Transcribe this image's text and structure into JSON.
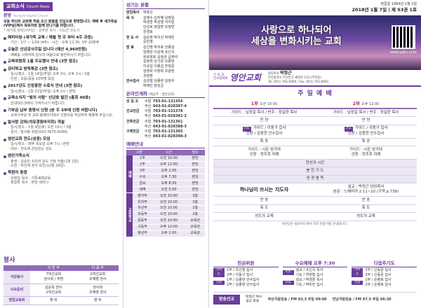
{
  "left": {
    "header": {
      "title": "교회소식",
      "subtitle": "Church News"
    },
    "welcome": {
      "label": "환영",
      "english": "Young-An Baptist Church",
      "text": "오늘 주님의 교회에 처음 오신 분들을 진심으로 환영합니다. 예배 후 새가족실(VIP실)에서 목회자와 함께 만나기를 바랍니다.",
      "note": "* 새가족 담당(VIP실) : 김주연 목사 · 이도연 전도사"
    },
    "news": [
      {
        "title": "해피타임 (새가족 교육 / 매월 첫 주 부터 4주 과정)",
        "lines": [
          "· 기간 : 1/7 ~ 1/28 (4주)  · 시간 : 오후 12:30, 3부 20분후"
        ]
      },
      {
        "title": "오늘은 신년감사주일 입니다 (예산 4,960만원)",
        "lines": [
          "· 예배를 시작하며 감사의 마음으로 봉헌하시기 바랍니다."
        ]
      },
      {
        "title": "교육위원회 1월 주요행사 안내 (3면 참조)",
        "lines": []
      },
      {
        "title": "큐티학교 방학특강 (3면 참조)",
        "lines": [
          "· 일시/장소 : 1월 14일(주일) 오후 3시, 오후 2시 / 3층",
          "· 인원 : 초등/중등 10여명 모집"
        ]
      },
      {
        "title": "2017년도 신앙훈련 수료식 안내 (3면 참조)",
        "lines": [
          "· 일시/장소 : 1월 21일(주일) 오후 2시 / 본당"
        ]
      },
      {
        "title": "교육소식지 \"빛의 사람\" 신년호 발간 (총회 40호)",
        "lines": [
          "· 안내데스크에서 가져가시기 바랍니다."
        ]
      },
      {
        "title": "기부금 납부 증명서 신청 (본 주 3부에 신청 바랍니다)",
        "lines": [
          "· 교회사무실 및 교회 홈페이지에서 신청서를 작성하여 제출해 주십시오."
        ]
      },
      {
        "title": "발사랑 강좌(치유경험바자회) 개설",
        "lines": [
          "· 일시/장소 : 1월 9일(화) 오전 10시 / 3층",
          "· 문의 : 발사랑 회장(010-3975-9289)"
        ]
      },
      {
        "title": "영안교회 전도(성경) 모임",
        "lines": [
          "· 일시/장소 : 매주 목요일 오후 7시 / 본당",
          "· 대상 : 전도에 관심있는 성도"
        ]
      },
      {
        "title": "영안가족소식",
        "lines": [
          "· 출생 : 김승민·조은비 성도 가정 아들(1월 2일)",
          "· 소천 : 박선애 권사 모친(12월 29일)"
        ]
      },
      {
        "title": "죽현자 동정",
        "lines": [
          "· 남정일 목사 : 가족세례교육",
          "· 정일환 목사 : 본당 세미나"
        ]
      }
    ],
    "service": {
      "title": "봉사",
      "columns": [
        "이 번 주",
        "다 음 주"
      ],
      "rows": [
        {
          "label": "식당봉사",
          "this": [
            "7여선교회",
            "권사회 / 주방"
          ],
          "next": [
            "2여선교회",
            "조혜영 권사"
          ]
        },
        {
          "label": "수요준비",
          "this": [
            "김순옥 권사",
            "2여선교회"
          ],
          "next": [
            "권사회",
            "조혜영 권사"
          ]
        },
        {
          "label": "영업교육회",
          "this": [
            "영 락"
          ],
          "next": [
            "영 락"
          ]
        }
      ]
    }
  },
  "middle": {
    "staff_title": "섬기는 분들",
    "staff": [
      {
        "role": "담임목사",
        "names": [
          "박정근"
        ]
      },
      {
        "role": "목 사",
        "names": [
          "김재수 김지혜 남정일",
          "박경훈 박성열 서지원",
          "안성호 정일환 조정연",
          "한경호"
        ]
      },
      {
        "role": "전 도 사",
        "names": [
          "김순영 박이선 박재진",
          "윤민영"
        ]
      },
      {
        "role": "장 로",
        "names": [
          "김건영 박석호 안종성",
          "양영관 이성재 조인국",
          "원로장로 김정균 김재석",
          "김정현 남기원 오종현",
          "이규섭 이종섭 전정문",
          "김창희 이창희 조광현",
          "조장환"
        ]
      },
      {
        "role": "안수집사",
        "names": [
          "김성렬 김종현 김정우",
          "박재진 정성균"
        ]
      }
    ],
    "accounts_title": "온라인계좌",
    "accounts_note": "(예금주 : 영안교회)",
    "accounts": [
      {
        "label": "성 일 조",
        "rows": [
          [
            "수협",
            "703-01-131354"
          ],
          [
            "부산",
            "043-01-028387-4"
          ]
        ]
      },
      {
        "label": "선교헌금",
        "rows": [
          [
            "수협",
            "703-01-131378"
          ],
          [
            "부산",
            "043-01-028381-2"
          ]
        ]
      },
      {
        "label": "건축헌금",
        "rows": [
          [
            "수협",
            "703-01-131361"
          ],
          [
            "부산",
            "043-01-028388-3"
          ]
        ]
      },
      {
        "label": "구제헌금",
        "rows": [
          [
            "수협",
            "703-01-131365"
          ],
          [
            "부산",
            "043-01-028390-3"
          ]
        ]
      }
    ],
    "schedule_title": "예배안내",
    "schedule_columns": [
      "구분",
      "시간",
      "장소"
    ],
    "schedule": [
      {
        "group": "예배",
        "rows": [
          [
            "1부",
            "오전 10:00",
            "본당"
          ],
          [
            "2부",
            "오후 12:00",
            "본당"
          ],
          [
            "3부",
            "오후 2:00",
            "본당"
          ],
          [
            "수요",
            "오후 7:30",
            "본당"
          ],
          [
            "금요",
            "오후 8:30",
            "본당"
          ],
          [
            "새벽",
            "오전 5:00",
            "본당"
          ]
        ]
      },
      {
        "group": "교회학교",
        "rows": [
          [
            "영아부",
            "오전 10:00",
            "3층"
          ],
          [
            "유치부",
            "오전 10:00",
            "3층"
          ],
          [
            "유년부",
            "오전 10:00",
            "2층"
          ],
          [
            "초등부",
            "오전 10:00",
            "2층"
          ],
          [
            "중등부",
            "오전 10:00",
            "교육관"
          ],
          [
            "고등부",
            "오후 12:00",
            "교육관"
          ],
          [
            "청년부",
            "오후 2:00",
            "교육관"
          ]
        ]
      }
    ]
  },
  "right": {
    "masthead": {
      "founded": "창립일 1964년 1월 1일",
      "issue": "2018년 1월 7일 | 제 53권 1호",
      "slogan": [
        "사랑으로 하나되어",
        "세상을 변화시키는 교회"
      ],
      "url": "www.yabc.or.kr",
      "denomination": [
        "기 독 교",
        "한국침례회"
      ],
      "church": "영안교회",
      "pastor_label": "담임목사",
      "pastor": "박정근",
      "address": [
        "부산광역시 부산진구 새싹로 123 (부전동)",
        "Tel. 051) 703-0000 / Fax. 051) 703-0001"
      ]
    },
    "worship": {
      "title": "주 일 예 배",
      "services": [
        {
          "name": "1부",
          "time": "오전 10:00"
        },
        {
          "name": "2부",
          "time": "오후 12:00"
        }
      ],
      "rows": [
        {
          "cells": [
            [
              "가이드 : 남정일 목사 / 반주 : 정일환 목사"
            ],
            [
              "가이드 : 남정일 목사 / 반주 : 정일환 목사"
            ]
          ]
        },
        {
          "cells": [
            [
              "찬 양"
            ],
            [
              "찬 양"
            ]
          ]
        },
        {
          "tag": "기도",
          "cells": [
            [
              "가이드 / 이동구 집사",
              "선창 / 김종현 안수집사"
            ],
            [
              "가이드 / 이동구 집사",
              "선창 / 김종현 안수집사"
            ]
          ]
        },
        {
          "cells": [
            [
              "특 송"
            ],
            [
              "특 송"
            ]
          ]
        },
        {
          "cells": [
            [
              "가이드 : 시온 성가대",
              "선창 : 정주희 자매"
            ],
            [
              "가이드 : 시온 성가대",
              "선창 : 정주희 자매"
            ]
          ]
        },
        {
          "span": "헌신의 시간"
        },
        {
          "span": "봉 헌 기 도"
        },
        {
          "span": "성 경 봉 독"
        },
        {
          "sermon": "하나님이 쓰시는 지도자",
          "lines": [
            "설교 : 박정근 담임목사",
            "본문 : 느헤미야 2:11~20 (구약 p.738)"
          ]
        },
        {
          "cells": [
            [
              "찬 송"
            ],
            [
              "찬 송"
            ]
          ]
        },
        {
          "cells": [
            [
              "축 도"
            ],
            [
              "축 도"
            ]
          ]
        },
        {
          "cells": [
            [
              "성도의 교제"
            ],
            [
              "성도의 교제"
            ]
          ]
        }
      ],
      "note": "※찬양은 슬라이드에서 미리 찬송가를 안내합니다."
    },
    "boxes": [
      {
        "title": "헌금위원",
        "groups": [
          {
            "tag": "가이드",
            "lines": [
              "1부 / 조인정 집사",
              "2부 / 이동구 집사"
            ]
          },
          {
            "tag": "선창",
            "lines": [
              "1부 / 김종현 안수집사",
              "2부 / 김종현 안수집사"
            ]
          }
        ]
      },
      {
        "title": "수요예배 오후 7:30",
        "groups": [
          {
            "tag": "이번",
            "lines": [
              "설교 / 조인국 목사",
              "기도 / 하현철 집사"
            ]
          },
          {
            "tag": "다음",
            "lines": [
              "설교 / 박경훈 목사",
              "기도 / 박미진 집사"
            ]
          }
        ]
      },
      {
        "title": "다음주기도",
        "groups": [
          {
            "tag": "가이드",
            "lines": [
              "1부 / 신동준 집사",
              "2부 / 신동준 집사"
            ]
          },
          {
            "tag": "선창",
            "lines": [
              "1부 / 손병호 집사",
              "2부 / 손병호 집사"
            ]
          }
        ]
      }
    ],
    "footer": {
      "label": "방송선교",
      "speaker": [
        "박정근 목사",
        "설교 방송"
      ],
      "stations": [
        "부산극동방송 / FM 93.3 주일 09:00",
        "전남극동방송 / FM 97.5 주일 06:30"
      ]
    }
  }
}
